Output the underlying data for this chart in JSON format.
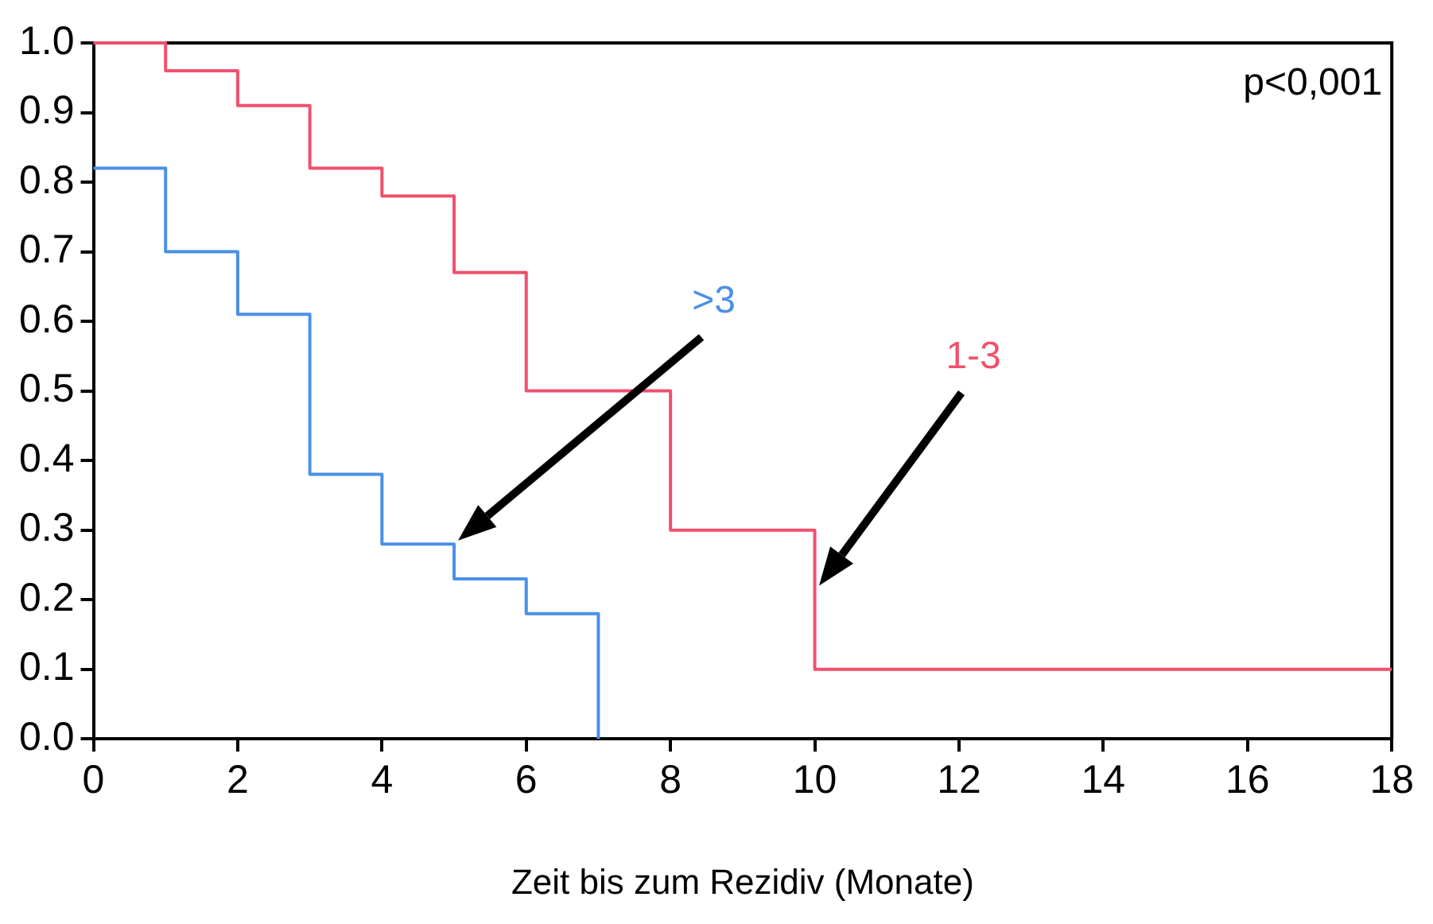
{
  "chart_data": {
    "type": "step",
    "xlabel": "Zeit bis zum Rezidiv (Monate)",
    "xlim": [
      0,
      18
    ],
    "xticks": [
      0,
      2,
      4,
      6,
      8,
      10,
      12,
      14,
      16,
      18
    ],
    "ylim": [
      0,
      1
    ],
    "yticks": [
      {
        "value": 0,
        "label": "0.0"
      },
      {
        "value": 0.1,
        "label": "0.1"
      },
      {
        "value": 0.2,
        "label": "0.2"
      },
      {
        "value": 0.3,
        "label": "0.3"
      },
      {
        "value": 0.4,
        "label": "0.4"
      },
      {
        "value": 0.5,
        "label": "0.5"
      },
      {
        "value": 0.6,
        "label": "0.6"
      },
      {
        "value": 0.7,
        "label": "0.7"
      },
      {
        "value": 0.8,
        "label": "0.8"
      },
      {
        "value": 0.9,
        "label": "0.9"
      },
      {
        "value": 1,
        "label": "1.0"
      }
    ],
    "grid": false,
    "legend": false,
    "marker": "none",
    "line_style": "solid",
    "annotations": [
      "p<0,001"
    ],
    "series": [
      {
        "name": "1-3",
        "color": "#f0506e",
        "x": [
          0,
          1,
          2,
          3,
          4,
          5,
          6,
          8,
          10,
          18
        ],
        "values": [
          1,
          0.96,
          0.91,
          0.82,
          0.78,
          0.67,
          0.5,
          0.3,
          0.1,
          0.1
        ]
      },
      {
        "name": ">3",
        "color": "#4a90e8",
        "x": [
          0,
          1,
          2,
          3,
          4,
          5,
          6,
          7
        ],
        "values": [
          0.82,
          0.7,
          0.61,
          0.38,
          0.28,
          0.23,
          0.18,
          0
        ]
      }
    ]
  }
}
